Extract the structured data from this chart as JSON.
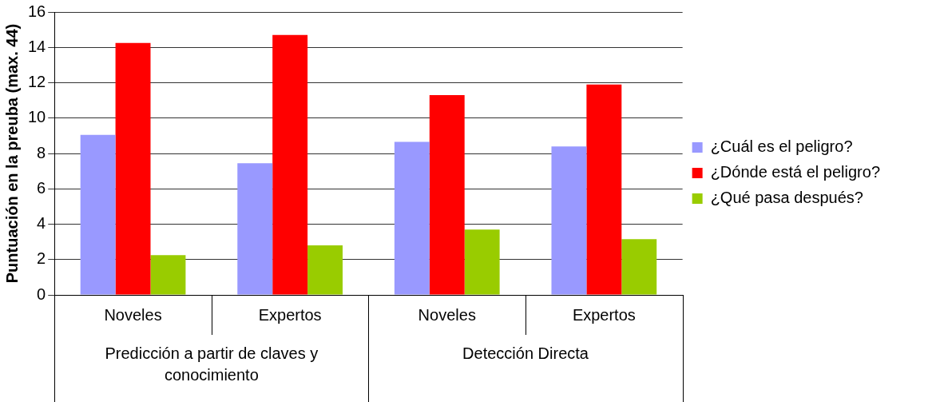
{
  "chart_data": {
    "type": "bar",
    "ylabel": "Puntuación en la preuba (max. 44)",
    "categories": [
      "Noveles",
      "Expertos",
      "Noveles",
      "Expertos"
    ],
    "annotations": [
      "Predicción a partir de claves y conocimiento",
      "Detección Directa"
    ],
    "series": [
      {
        "name": "¿Cuál es el peligro?",
        "color": "#9999ff",
        "values": [
          9.05,
          7.45,
          8.65,
          8.4
        ]
      },
      {
        "name": "¿Dónde está el peligro?",
        "color": "#ff0000",
        "values": [
          14.25,
          14.7,
          11.3,
          11.9
        ]
      },
      {
        "name": "¿Qué pasa después?",
        "color": "#99cc00",
        "values": [
          2.25,
          2.8,
          3.7,
          3.15
        ]
      }
    ],
    "ylim": [
      0,
      16
    ],
    "yticks": [
      0,
      2,
      4,
      6,
      8,
      10,
      12,
      14,
      16
    ],
    "grid": "y",
    "legend": "right"
  }
}
